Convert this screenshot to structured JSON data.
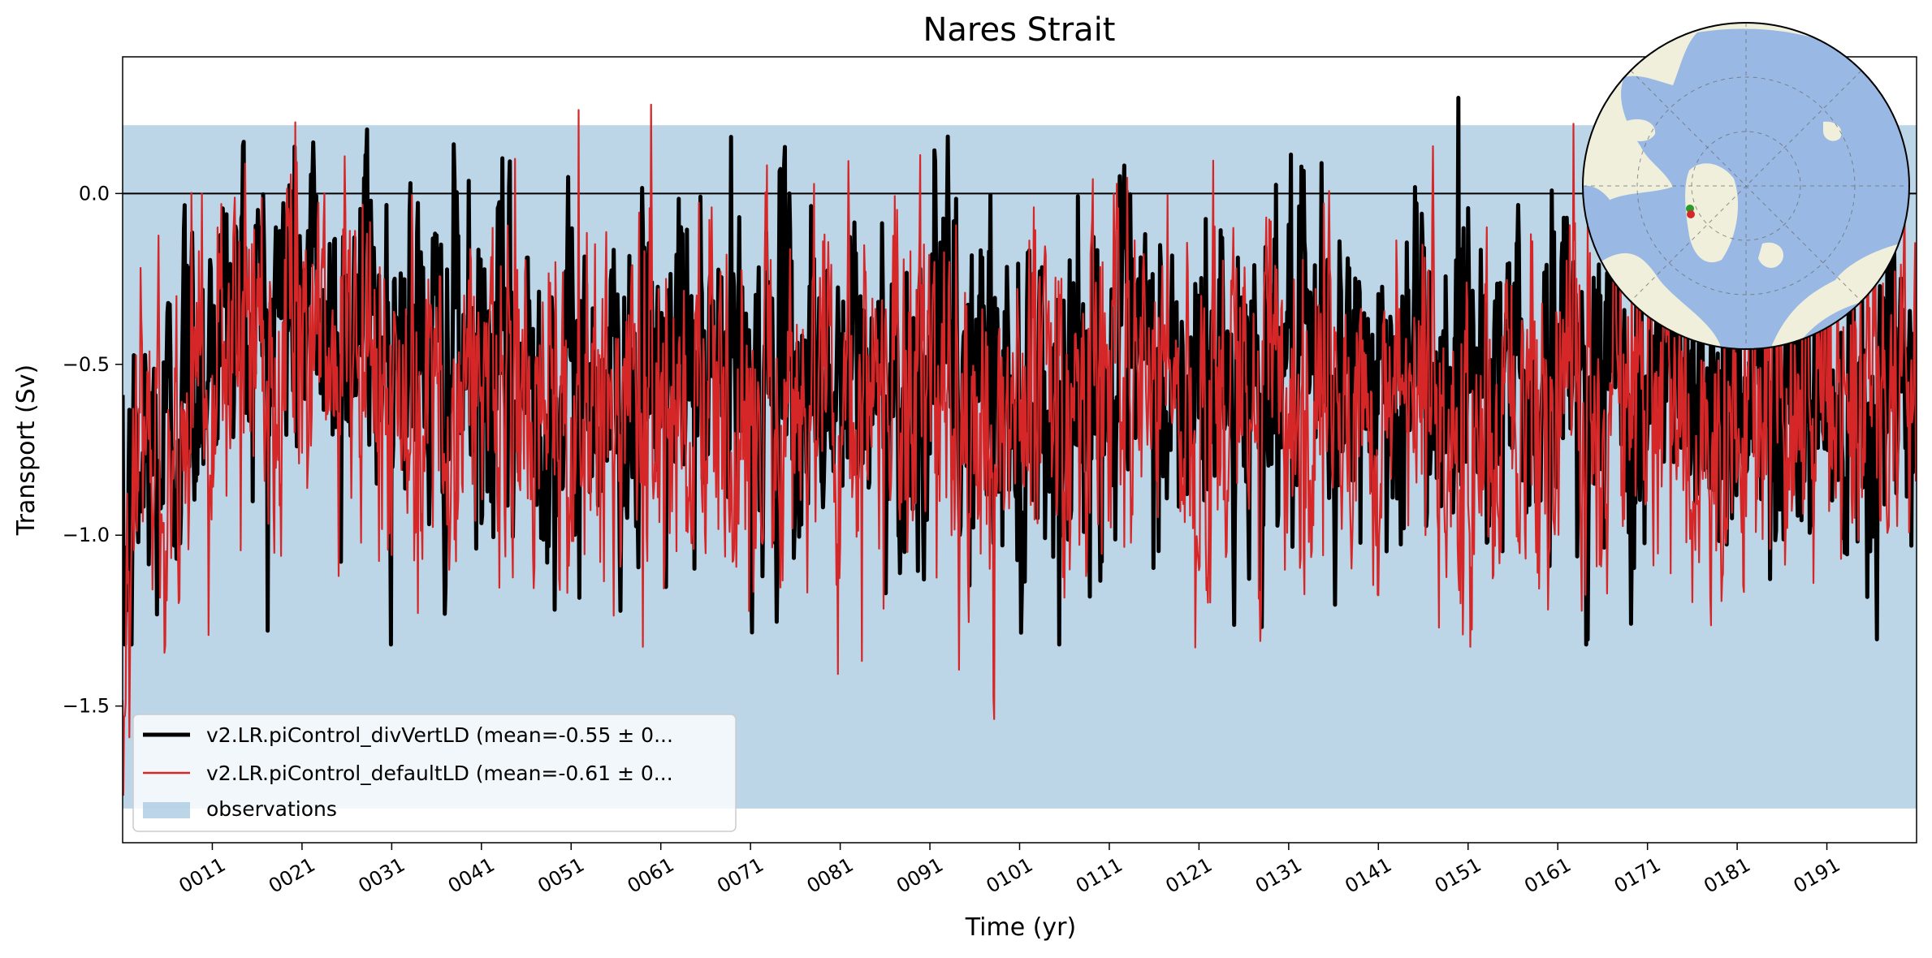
{
  "chart_data": {
    "type": "line",
    "title": "Nares Strait",
    "xlabel": "Time (yr)",
    "ylabel": "Transport (Sv)",
    "xlim": [
      1,
      201
    ],
    "ylim": [
      -1.9,
      0.4
    ],
    "yticks": [
      0.0,
      -0.5,
      -1.0,
      -1.5
    ],
    "ytick_labels": [
      "0.0",
      "−0.5",
      "−1.0",
      "−1.5"
    ],
    "xticks": [
      11,
      21,
      31,
      41,
      51,
      61,
      71,
      81,
      91,
      101,
      111,
      121,
      131,
      141,
      151,
      161,
      171,
      181,
      191
    ],
    "xtick_labels": [
      "0011",
      "0021",
      "0031",
      "0041",
      "0051",
      "0061",
      "0071",
      "0081",
      "0091",
      "0101",
      "0111",
      "0121",
      "0131",
      "0141",
      "0151",
      "0161",
      "0171",
      "0181",
      "0191"
    ],
    "zero_line": 0.0,
    "observations_band": {
      "name": "observations",
      "ymin": -1.8,
      "ymax": 0.2,
      "color": "#a6c8e0"
    },
    "series": [
      {
        "name": "v2.LR.piControl_divVertLD (mean=-0.55 ± 0...",
        "color": "#000000",
        "mean": -0.55,
        "approx_yearly_means": [
          -1.2,
          -0.95,
          -0.85,
          -0.75,
          -0.8,
          -0.7,
          -0.65,
          -0.55,
          -0.5,
          -0.45,
          -0.4,
          -0.35,
          -0.4,
          -0.3,
          -0.35,
          -0.3,
          -0.35,
          -0.4,
          -0.3,
          -0.25,
          -0.35,
          -0.3,
          -0.35,
          -0.4,
          -0.45,
          -0.4,
          -0.35,
          -0.3,
          -0.35,
          -0.4,
          -0.4,
          -0.35,
          -0.4,
          -0.45,
          -0.5,
          -0.55,
          -0.5,
          -0.45,
          -0.5,
          -0.55,
          -0.6,
          -0.55,
          -0.5,
          -0.55,
          -0.6,
          -0.55,
          -0.5,
          -0.55,
          -0.6,
          -0.65,
          -0.6,
          -0.55,
          -0.5,
          -0.55,
          -0.6,
          -0.55,
          -0.5,
          -0.55,
          -0.6,
          -0.55,
          -0.55,
          -0.6,
          -0.55,
          -0.5,
          -0.55,
          -0.6,
          -0.55,
          -0.5,
          -0.55,
          -0.6,
          -0.55,
          -0.6,
          -0.55,
          -0.5,
          -0.55,
          -0.6,
          -0.55,
          -0.5,
          -0.55,
          -0.6,
          -0.6,
          -0.55,
          -0.5,
          -0.55,
          -0.6,
          -0.55,
          -0.5,
          -0.55,
          -0.6,
          -0.55,
          -0.5,
          -0.45,
          -0.5,
          -0.55,
          -0.6,
          -0.55,
          -0.5,
          -0.55,
          -0.6,
          -0.65,
          -0.7,
          -0.6,
          -0.55,
          -0.6,
          -0.65,
          -0.6,
          -0.55,
          -0.6,
          -0.55,
          -0.5,
          -0.55,
          -0.6,
          -0.55,
          -0.5,
          -0.55,
          -0.6,
          -0.55,
          -0.6,
          -0.65,
          -0.6,
          -0.6,
          -0.55,
          -0.5,
          -0.55,
          -0.6,
          -0.55,
          -0.5,
          -0.55,
          -0.5,
          -0.45,
          -0.5,
          -0.55,
          -0.6,
          -0.55,
          -0.5,
          -0.55,
          -0.6,
          -0.55,
          -0.6,
          -0.55,
          -0.5,
          -0.55,
          -0.6,
          -0.55,
          -0.5,
          -0.45,
          -0.5,
          -0.55,
          -0.5,
          -0.55,
          -0.4,
          -0.45,
          -0.5,
          -0.55,
          -0.5,
          -0.45,
          -0.5,
          -0.55,
          -0.6,
          -0.55,
          -0.5,
          -0.45,
          -0.5,
          -0.55,
          -0.6,
          -0.55,
          -0.5,
          -0.55,
          -0.6,
          -0.65,
          -0.6,
          -0.55,
          -0.5,
          -0.55,
          -0.6,
          -0.55,
          -0.5,
          -0.55,
          -0.6,
          -0.55,
          -0.5,
          -0.55,
          -0.6,
          -0.55,
          -0.5,
          -0.55,
          -0.6,
          -0.65,
          -0.6,
          -0.55,
          -0.55,
          -0.6,
          -0.55,
          -0.5,
          -0.55,
          -0.6,
          -0.55,
          -0.5,
          -0.55,
          -0.6
        ],
        "approx_min": -1.32,
        "approx_max": 0.28
      },
      {
        "name": "v2.LR.piControl_defaultLD (mean=-0.61 ± 0...",
        "color": "#d62728",
        "mean": -0.61,
        "approx_yearly_means": [
          -1.3,
          -0.9,
          -0.8,
          -0.75,
          -0.8,
          -0.75,
          -0.7,
          -0.6,
          -0.55,
          -0.5,
          -0.5,
          -0.45,
          -0.5,
          -0.45,
          -0.4,
          -0.45,
          -0.5,
          -0.45,
          -0.4,
          -0.45,
          -0.5,
          -0.45,
          -0.5,
          -0.55,
          -0.5,
          -0.55,
          -0.6,
          -0.55,
          -0.5,
          -0.55,
          -0.5,
          -0.55,
          -0.6,
          -0.65,
          -0.6,
          -0.55,
          -0.6,
          -0.65,
          -0.6,
          -0.55,
          -0.6,
          -0.65,
          -0.6,
          -0.55,
          -0.6,
          -0.65,
          -0.7,
          -0.65,
          -0.6,
          -0.65,
          -0.7,
          -0.75,
          -0.7,
          -0.65,
          -0.6,
          -0.65,
          -0.6,
          -0.55,
          -0.6,
          -0.65,
          -0.6,
          -0.55,
          -0.6,
          -0.65,
          -0.6,
          -0.55,
          -0.6,
          -0.65,
          -0.7,
          -0.65,
          -0.6,
          -0.65,
          -0.7,
          -0.65,
          -0.6,
          -0.55,
          -0.6,
          -0.65,
          -0.6,
          -0.65,
          -0.7,
          -0.65,
          -0.6,
          -0.65,
          -0.6,
          -0.55,
          -0.6,
          -0.65,
          -0.6,
          -0.55,
          -0.6,
          -0.65,
          -0.7,
          -0.65,
          -0.6,
          -0.65,
          -0.7,
          -0.75,
          -0.7,
          -0.65,
          -0.6,
          -0.65,
          -0.6,
          -0.55,
          -0.6,
          -0.65,
          -0.6,
          -0.55,
          -0.6,
          -0.65,
          -0.6,
          -0.55,
          -0.6,
          -0.65,
          -0.6,
          -0.55,
          -0.5,
          -0.55,
          -0.6,
          -0.65,
          -0.6,
          -0.55,
          -0.6,
          -0.55,
          -0.5,
          -0.55,
          -0.6,
          -0.65,
          -0.6,
          -0.55,
          -0.6,
          -0.65,
          -0.6,
          -0.55,
          -0.5,
          -0.55,
          -0.6,
          -0.65,
          -0.6,
          -0.65,
          -0.6,
          -0.55,
          -0.6,
          -0.65,
          -0.6,
          -0.55,
          -0.6,
          -0.55,
          -0.6,
          -0.65,
          -0.55,
          -0.6,
          -0.65,
          -0.6,
          -0.55,
          -0.6,
          -0.65,
          -0.6,
          -0.55,
          -0.6,
          -0.6,
          -0.65,
          -0.6,
          -0.55,
          -0.6,
          -0.65,
          -0.7,
          -0.65,
          -0.6,
          -0.55,
          -0.6,
          -0.65,
          -0.6,
          -0.55,
          -0.6,
          -0.65,
          -0.7,
          -0.75,
          -0.7,
          -0.65,
          -0.6,
          -0.55,
          -0.6,
          -0.65,
          -0.6,
          -0.55,
          -0.6,
          -0.65,
          -0.6,
          -0.55,
          -0.6,
          -0.55,
          -0.6,
          -0.65,
          -0.6,
          -0.55,
          -0.6,
          -0.65,
          -0.6,
          -0.55
        ],
        "approx_min": -1.76,
        "approx_max": 0.26
      }
    ],
    "legend": {
      "placement": "lower-left",
      "entries": [
        "v2.LR.piControl_divVertLD (mean=-0.55 ± 0...",
        "v2.LR.piControl_defaultLD (mean=-0.61 ± 0...",
        "observations"
      ]
    },
    "inset_map": {
      "projection": "north-polar-stereographic",
      "placement": "top-right",
      "ocean_color": "#9ab8e4",
      "land_color": "#efefdc",
      "marker_colors": [
        "#2a9a2a",
        "#d62728"
      ]
    }
  }
}
